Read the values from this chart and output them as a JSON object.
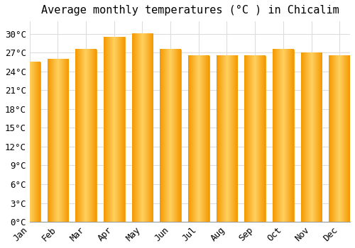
{
  "title": "Average monthly temperatures (°C ) in Chicalim",
  "months": [
    "Jan",
    "Feb",
    "Mar",
    "Apr",
    "May",
    "Jun",
    "Jul",
    "Aug",
    "Sep",
    "Oct",
    "Nov",
    "Dec"
  ],
  "values": [
    25.5,
    26.0,
    27.5,
    29.5,
    30.0,
    27.5,
    26.5,
    26.5,
    26.5,
    27.5,
    27.0,
    26.5
  ],
  "bar_color_center": "#FFD060",
  "bar_color_edge": "#F59800",
  "background_color": "#FFFFFF",
  "grid_color": "#DDDDDD",
  "ylim": [
    0,
    32
  ],
  "yticks": [
    0,
    3,
    6,
    9,
    12,
    15,
    18,
    21,
    24,
    27,
    30
  ],
  "title_fontsize": 11,
  "tick_fontsize": 9,
  "font_family": "monospace"
}
